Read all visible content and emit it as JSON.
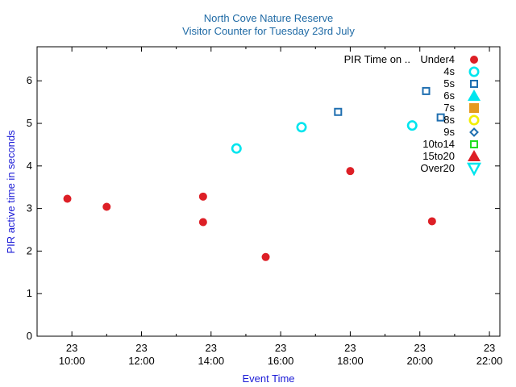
{
  "chart_data": {
    "type": "scatter",
    "title": "North Cove Nature Reserve",
    "subtitle": "Visitor Counter for Tuesday 23rd July",
    "xlabel": "Event Time",
    "ylabel": "PIR active time in seconds",
    "xlim": [
      9.0,
      22.3
    ],
    "ylim": [
      0,
      6.8
    ],
    "x_unit": "hour of day",
    "x_ticks": [
      {
        "value": 10,
        "label_day": "23",
        "label_time": "10:00"
      },
      {
        "value": 12,
        "label_day": "23",
        "label_time": "12:00"
      },
      {
        "value": 14,
        "label_day": "23",
        "label_time": "14:00"
      },
      {
        "value": 16,
        "label_day": "23",
        "label_time": "16:00"
      },
      {
        "value": 18,
        "label_day": "23",
        "label_time": "18:00"
      },
      {
        "value": 20,
        "label_day": "23",
        "label_time": "20:00"
      },
      {
        "value": 22,
        "label_day": "23",
        "label_time": "22:00"
      }
    ],
    "y_ticks": [
      "0",
      "1",
      "2",
      "3",
      "4",
      "5",
      "6"
    ],
    "legend_title": "PIR Time on ..",
    "legend_position": "top-right",
    "series": [
      {
        "name": "Under4",
        "marker": "circle",
        "color": "#dd1f26",
        "points": [
          [
            9.87,
            3.23
          ],
          [
            11.0,
            3.04
          ],
          [
            13.77,
            3.28
          ],
          [
            13.77,
            2.68
          ],
          [
            15.57,
            1.86
          ],
          [
            18.0,
            3.88
          ],
          [
            20.35,
            2.7
          ]
        ]
      },
      {
        "name": "4s",
        "marker": "circle-open",
        "color": "#00e5ee",
        "points": [
          [
            14.73,
            4.41
          ],
          [
            16.6,
            4.91
          ],
          [
            19.78,
            4.95
          ]
        ]
      },
      {
        "name": "5s",
        "marker": "square-open",
        "color": "#1f6fb0",
        "points": [
          [
            17.65,
            5.27
          ],
          [
            20.18,
            5.76
          ],
          [
            20.6,
            5.14
          ]
        ]
      },
      {
        "name": "6s",
        "marker": "triangle",
        "color": "#00e5ee",
        "points": []
      },
      {
        "name": "7s",
        "marker": "square",
        "color": "#e59a1f",
        "points": []
      },
      {
        "name": "8s",
        "marker": "circle-open",
        "color": "#f2ee00",
        "points": []
      },
      {
        "name": "9s",
        "marker": "diamond-open",
        "color": "#1f6fb0",
        "points": []
      },
      {
        "name": "10to14",
        "marker": "square-open",
        "color": "#22dd22",
        "points": []
      },
      {
        "name": "15to20",
        "marker": "triangle",
        "color": "#dd1f26",
        "points": []
      },
      {
        "name": "Over20",
        "marker": "triangle-down-open",
        "color": "#00e5ee",
        "points": []
      }
    ]
  },
  "colors": {
    "title": "#1f6aa5",
    "axis_label": "#1a1ad6",
    "frame": "#000000"
  }
}
